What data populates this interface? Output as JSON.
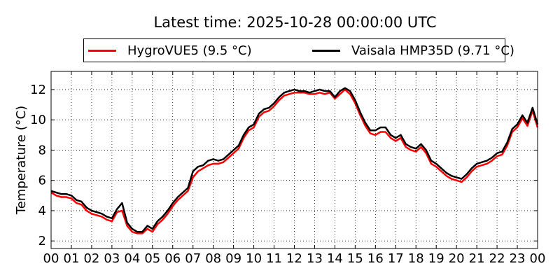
{
  "chart_data": {
    "type": "line",
    "title": "Latest time: 2025-10-28 00:00:00 UTC",
    "xlabel": "",
    "ylabel": "Temperature (°C)",
    "xlim": [
      0,
      24
    ],
    "ylim": [
      1.5,
      13.2
    ],
    "x_ticks": [
      "00",
      "01",
      "02",
      "03",
      "04",
      "05",
      "06",
      "07",
      "08",
      "09",
      "10",
      "11",
      "12",
      "13",
      "14",
      "15",
      "16",
      "17",
      "18",
      "19",
      "20",
      "21",
      "22",
      "23",
      "00"
    ],
    "y_ticks": [
      2,
      4,
      6,
      8,
      10,
      12
    ],
    "grid": true,
    "legend_position": "top-center",
    "x": [
      0,
      0.25,
      0.5,
      0.75,
      1,
      1.25,
      1.5,
      1.75,
      2,
      2.25,
      2.5,
      2.75,
      3,
      3.25,
      3.5,
      3.75,
      4,
      4.25,
      4.5,
      4.75,
      5,
      5.25,
      5.5,
      5.75,
      6,
      6.25,
      6.5,
      6.75,
      7,
      7.25,
      7.5,
      7.75,
      8,
      8.25,
      8.5,
      8.75,
      9,
      9.25,
      9.5,
      9.75,
      10,
      10.25,
      10.5,
      10.75,
      11,
      11.25,
      11.5,
      11.75,
      12,
      12.25,
      12.5,
      12.75,
      13,
      13.25,
      13.5,
      13.75,
      14,
      14.25,
      14.5,
      14.75,
      15,
      15.25,
      15.5,
      15.75,
      16,
      16.25,
      16.5,
      16.75,
      17,
      17.25,
      17.5,
      17.75,
      18,
      18.25,
      18.5,
      18.75,
      19,
      19.25,
      19.5,
      19.75,
      20,
      20.25,
      20.5,
      20.75,
      21,
      21.25,
      21.5,
      21.75,
      22,
      22.25,
      22.5,
      22.75,
      23,
      23.25,
      23.5,
      23.75,
      24
    ],
    "series": [
      {
        "name": "HygroVUE5 (9.5 °C)",
        "color": "#ff0000",
        "values": [
          5.2,
          5.0,
          4.9,
          4.9,
          4.8,
          4.5,
          4.4,
          4.0,
          3.8,
          3.7,
          3.6,
          3.4,
          3.3,
          3.9,
          4.0,
          3.0,
          2.6,
          2.5,
          2.5,
          2.8,
          2.6,
          3.1,
          3.4,
          3.8,
          4.3,
          4.7,
          5.0,
          5.3,
          6.2,
          6.6,
          6.8,
          7.0,
          7.1,
          7.1,
          7.2,
          7.5,
          7.8,
          8.1,
          8.8,
          9.3,
          9.5,
          10.2,
          10.5,
          10.6,
          10.9,
          11.3,
          11.6,
          11.7,
          11.8,
          11.8,
          11.8,
          11.7,
          11.7,
          11.8,
          11.7,
          11.8,
          11.4,
          11.7,
          12.0,
          11.7,
          11.1,
          10.3,
          9.6,
          9.1,
          9.0,
          9.2,
          9.2,
          8.8,
          8.6,
          8.8,
          8.2,
          8.0,
          7.9,
          8.2,
          7.8,
          7.1,
          6.9,
          6.6,
          6.3,
          6.1,
          6.0,
          5.9,
          6.2,
          6.6,
          6.9,
          7.0,
          7.1,
          7.3,
          7.6,
          7.7,
          8.3,
          9.2,
          9.5,
          10.1,
          9.6,
          10.6,
          9.5
        ]
      },
      {
        "name": "Vaisala HMP35D (9.71 °C)",
        "color": "#000000",
        "values": [
          5.3,
          5.2,
          5.1,
          5.1,
          5.0,
          4.7,
          4.6,
          4.2,
          4.0,
          3.9,
          3.8,
          3.6,
          3.5,
          4.1,
          4.5,
          3.2,
          2.8,
          2.6,
          2.6,
          3.0,
          2.8,
          3.3,
          3.6,
          4.0,
          4.5,
          4.9,
          5.2,
          5.5,
          6.6,
          6.9,
          7.0,
          7.3,
          7.4,
          7.3,
          7.4,
          7.7,
          8.0,
          8.3,
          9.0,
          9.5,
          9.7,
          10.4,
          10.7,
          10.8,
          11.1,
          11.5,
          11.8,
          11.9,
          12.0,
          11.9,
          11.9,
          11.8,
          11.9,
          12.0,
          11.9,
          11.9,
          11.5,
          11.9,
          12.1,
          11.9,
          11.3,
          10.5,
          9.8,
          9.3,
          9.3,
          9.5,
          9.5,
          9.0,
          8.8,
          9.0,
          8.4,
          8.2,
          8.1,
          8.4,
          8.0,
          7.3,
          7.1,
          6.8,
          6.5,
          6.3,
          6.2,
          6.1,
          6.4,
          6.8,
          7.1,
          7.2,
          7.3,
          7.5,
          7.8,
          7.9,
          8.5,
          9.4,
          9.7,
          10.3,
          9.8,
          10.8,
          9.7
        ]
      }
    ]
  }
}
